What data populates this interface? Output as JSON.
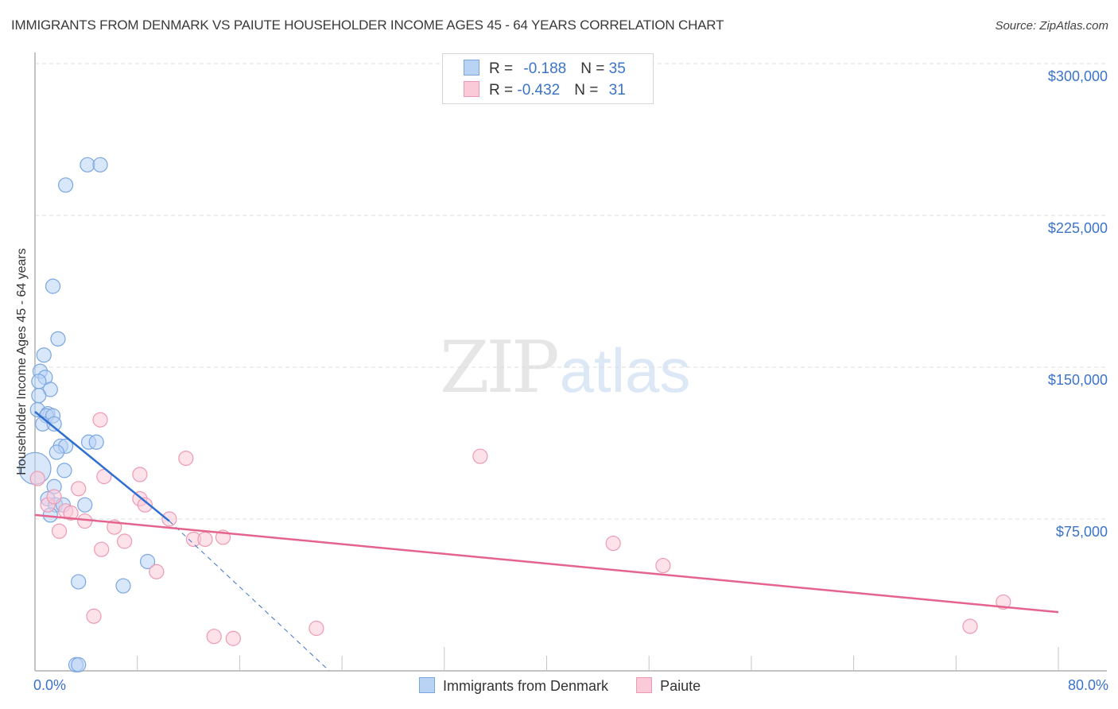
{
  "header": {
    "title": "IMMIGRANTS FROM DENMARK VS PAIUTE HOUSEHOLDER INCOME AGES 45 - 64 YEARS CORRELATION CHART",
    "source": "Source: ZipAtlas.com"
  },
  "legend": {
    "rows": [
      {
        "r_label": "R = ",
        "r_value": "-0.188",
        "n_label": "N = ",
        "n_value": "35",
        "color": "#b9d3f5",
        "border": "#7aa6e0"
      },
      {
        "r_label": "R = ",
        "r_value": "-0.432",
        "n_label": "N = ",
        "n_value": "31",
        "color": "#fbcad8",
        "border": "#ec9ab3"
      }
    ]
  },
  "bottom_legend": {
    "items": [
      {
        "label": "Immigrants from Denmark",
        "color": "#b9d3f5",
        "border": "#7aa6e0"
      },
      {
        "label": "Paiute",
        "color": "#fbcad8",
        "border": "#ec9ab3"
      }
    ]
  },
  "axes": {
    "ylabel": "Householder Income Ages 45 - 64 years",
    "yticks": [
      "$300,000",
      "$225,000",
      "$150,000",
      "$75,000"
    ],
    "xticks": [
      "0.0%",
      "80.0%"
    ]
  },
  "watermark": {
    "zip": "ZIP",
    "atlas": "atlas"
  },
  "chart_data": {
    "type": "scatter",
    "title": "IMMIGRANTS FROM DENMARK VS PAIUTE HOUSEHOLDER INCOME AGES 45 - 64 YEARS CORRELATION CHART",
    "xlabel": "",
    "ylabel": "Householder Income Ages 45 - 64 years",
    "xlim": [
      0,
      80
    ],
    "ylim": [
      0,
      300000
    ],
    "x_unit": "%",
    "grid": true,
    "legend_position": "top-center",
    "series": [
      {
        "name": "Immigrants from Denmark",
        "color": "#7aa6e0",
        "R": -0.188,
        "N": 35,
        "points": [
          [
            4.1,
            250000
          ],
          [
            5.1,
            250000
          ],
          [
            2.4,
            240000
          ],
          [
            1.4,
            190000
          ],
          [
            1.8,
            164000
          ],
          [
            0.7,
            156000
          ],
          [
            0.4,
            148000
          ],
          [
            0.8,
            145000
          ],
          [
            0.3,
            143000
          ],
          [
            1.2,
            139000
          ],
          [
            0.3,
            136000
          ],
          [
            0.2,
            129000
          ],
          [
            1.0,
            127000
          ],
          [
            0.9,
            126000
          ],
          [
            1.4,
            126000
          ],
          [
            0.6,
            122000
          ],
          [
            1.5,
            122000
          ],
          [
            4.2,
            113000
          ],
          [
            4.8,
            113000
          ],
          [
            2.0,
            111000
          ],
          [
            2.4,
            111000
          ],
          [
            1.7,
            108000
          ],
          [
            0.0,
            100000
          ],
          [
            2.3,
            99000
          ],
          [
            1.5,
            91000
          ],
          [
            1.0,
            85000
          ],
          [
            1.6,
            82000
          ],
          [
            2.2,
            82000
          ],
          [
            3.9,
            82000
          ],
          [
            1.2,
            77000
          ],
          [
            8.8,
            54000
          ],
          [
            3.4,
            44000
          ],
          [
            6.9,
            42000
          ],
          [
            3.2,
            3000
          ],
          [
            3.4,
            3000
          ]
        ],
        "trendline": {
          "x": [
            0.0,
            10.5
          ],
          "y": [
            128000,
            74000
          ],
          "dashed_extension_to": [
            23.0,
            0
          ]
        }
      },
      {
        "name": "Paiute",
        "color": "#ec9ab3",
        "R": -0.432,
        "N": 31,
        "points": [
          [
            0.2,
            95000
          ],
          [
            1.0,
            82000
          ],
          [
            1.5,
            86000
          ],
          [
            1.9,
            69000
          ],
          [
            2.4,
            79000
          ],
          [
            2.8,
            78000
          ],
          [
            3.4,
            90000
          ],
          [
            3.9,
            74000
          ],
          [
            5.1,
            124000
          ],
          [
            5.4,
            96000
          ],
          [
            5.2,
            60000
          ],
          [
            4.6,
            27000
          ],
          [
            6.2,
            71000
          ],
          [
            7.0,
            64000
          ],
          [
            8.2,
            85000
          ],
          [
            8.2,
            97000
          ],
          [
            8.6,
            82000
          ],
          [
            9.5,
            49000
          ],
          [
            10.5,
            75000
          ],
          [
            11.8,
            105000
          ],
          [
            12.4,
            65000
          ],
          [
            13.3,
            65000
          ],
          [
            14.7,
            66000
          ],
          [
            14.0,
            17000
          ],
          [
            15.5,
            16000
          ],
          [
            22.0,
            21000
          ],
          [
            34.8,
            106000
          ],
          [
            45.2,
            63000
          ],
          [
            49.1,
            52000
          ],
          [
            73.1,
            22000
          ],
          [
            75.7,
            34000
          ]
        ],
        "trendline": {
          "x": [
            0.0,
            80.0
          ],
          "y": [
            77000,
            29000
          ]
        }
      }
    ]
  }
}
